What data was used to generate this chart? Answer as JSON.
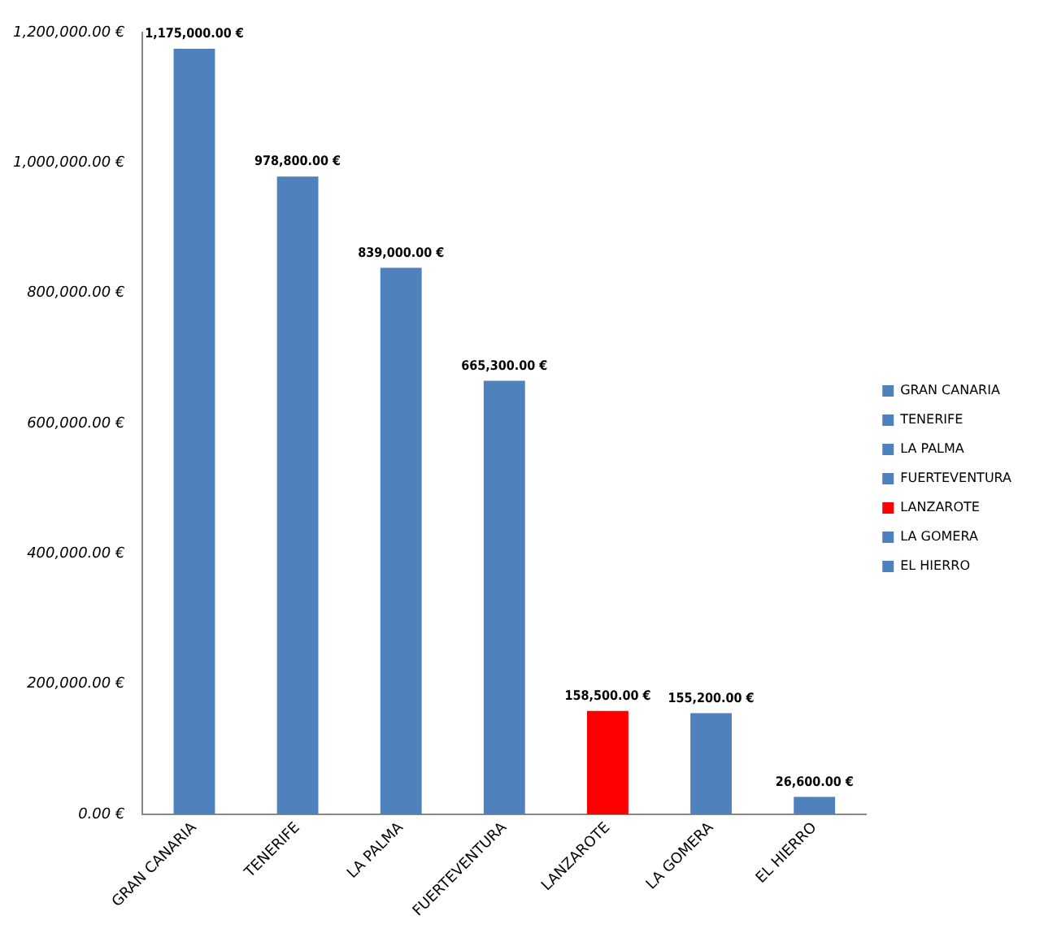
{
  "chart_data": {
    "type": "bar",
    "categories": [
      "GRAN CANARIA",
      "TENERIFE",
      "LA PALMA",
      "FUERTEVENTURA",
      "LANZAROTE",
      "LA GOMERA",
      "EL HIERRO"
    ],
    "series": [
      {
        "name": "GRAN CANARIA",
        "color": "#4f81bd",
        "values": [
          1175000,
          null,
          null,
          null,
          null,
          null,
          null
        ],
        "value_labels": [
          "1,175,000.00 €",
          null,
          null,
          null,
          null,
          null,
          null
        ]
      },
      {
        "name": "TENERIFE",
        "color": "#4f81bd",
        "values": [
          null,
          978800,
          null,
          null,
          null,
          null,
          null
        ],
        "value_labels": [
          null,
          "978,800.00 €",
          null,
          null,
          null,
          null,
          null
        ]
      },
      {
        "name": "LA PALMA",
        "color": "#4f81bd",
        "values": [
          null,
          null,
          839000,
          null,
          null,
          null,
          null
        ],
        "value_labels": [
          null,
          null,
          "839,000.00 €",
          null,
          null,
          null,
          null
        ]
      },
      {
        "name": "FUERTEVENTURA",
        "color": "#4f81bd",
        "values": [
          null,
          null,
          null,
          665300,
          null,
          null,
          null
        ],
        "value_labels": [
          null,
          null,
          null,
          "665,300.00 €",
          null,
          null,
          null
        ]
      },
      {
        "name": "LANZAROTE",
        "color": "#ff0000",
        "values": [
          null,
          null,
          null,
          null,
          158500,
          null,
          null
        ],
        "value_labels": [
          null,
          null,
          null,
          null,
          "158,500.00 €",
          null,
          null
        ]
      },
      {
        "name": "LA GOMERA",
        "color": "#4f81bd",
        "values": [
          null,
          null,
          null,
          null,
          null,
          155200,
          null
        ],
        "value_labels": [
          null,
          null,
          null,
          null,
          null,
          "155,200.00 €",
          null
        ]
      },
      {
        "name": "EL HIERRO",
        "color": "#4f81bd",
        "values": [
          null,
          null,
          null,
          null,
          null,
          null,
          26600
        ],
        "value_labels": [
          null,
          null,
          null,
          null,
          null,
          null,
          "26,600.00 €"
        ]
      }
    ],
    "ylim": [
      0,
      1200000
    ],
    "yticks": [
      {
        "value": 0,
        "label": "0.00 €"
      },
      {
        "value": 200000,
        "label": "200,000.00 €"
      },
      {
        "value": 400000,
        "label": "400,000.00 €"
      },
      {
        "value": 600000,
        "label": "600,000.00 €"
      },
      {
        "value": 800000,
        "label": "800,000.00 €"
      },
      {
        "value": 1000000,
        "label": "1,000,000.00 €"
      },
      {
        "value": 1200000,
        "label": "1,200,000.00 €"
      }
    ],
    "grid": false,
    "legend": "right"
  }
}
